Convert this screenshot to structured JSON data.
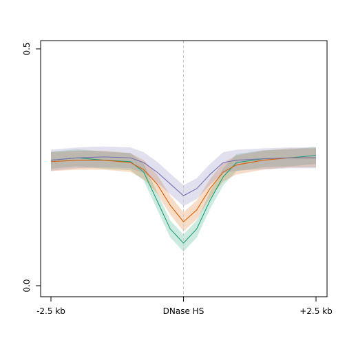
{
  "chart_data": {
    "type": "line",
    "title": "",
    "xlabel": "",
    "ylabel": "",
    "xlim": [
      -2500,
      2500
    ],
    "ylim": [
      0,
      0.5
    ],
    "x_ticks": [
      {
        "value": -2500,
        "label": "-2.5 kb"
      },
      {
        "value": 0,
        "label": "DNase HS"
      },
      {
        "value": 2500,
        "label": "+2.5 kb"
      }
    ],
    "y_ticks": [
      {
        "value": 0.0,
        "label": "0.0"
      },
      {
        "value": 0.5,
        "label": "0.5"
      }
    ],
    "reference_line": {
      "x": 0,
      "style": "dashed",
      "color": "#cccccc"
    },
    "grid": false,
    "legend": "none",
    "x": [
      -2500,
      -2000,
      -1500,
      -1000,
      -750,
      -500,
      -250,
      0,
      250,
      500,
      750,
      1000,
      1500,
      2000,
      2500
    ],
    "series": [
      {
        "color": "#1b9e77",
        "values": [
          0.265,
          0.27,
          0.265,
          0.262,
          0.24,
          0.18,
          0.12,
          0.09,
          0.12,
          0.18,
          0.23,
          0.26,
          0.268,
          0.27,
          0.275
        ],
        "band_halfwidth": 0.018
      },
      {
        "color": "#d95f02",
        "values": [
          0.262,
          0.265,
          0.265,
          0.26,
          0.245,
          0.215,
          0.17,
          0.135,
          0.16,
          0.205,
          0.24,
          0.255,
          0.265,
          0.27,
          0.27
        ],
        "band_halfwidth": 0.02
      },
      {
        "color": "#7570b3",
        "values": [
          0.265,
          0.27,
          0.272,
          0.27,
          0.26,
          0.24,
          0.215,
          0.19,
          0.205,
          0.235,
          0.26,
          0.265,
          0.268,
          0.27,
          0.27
        ],
        "band_halfwidth": 0.022
      }
    ]
  }
}
